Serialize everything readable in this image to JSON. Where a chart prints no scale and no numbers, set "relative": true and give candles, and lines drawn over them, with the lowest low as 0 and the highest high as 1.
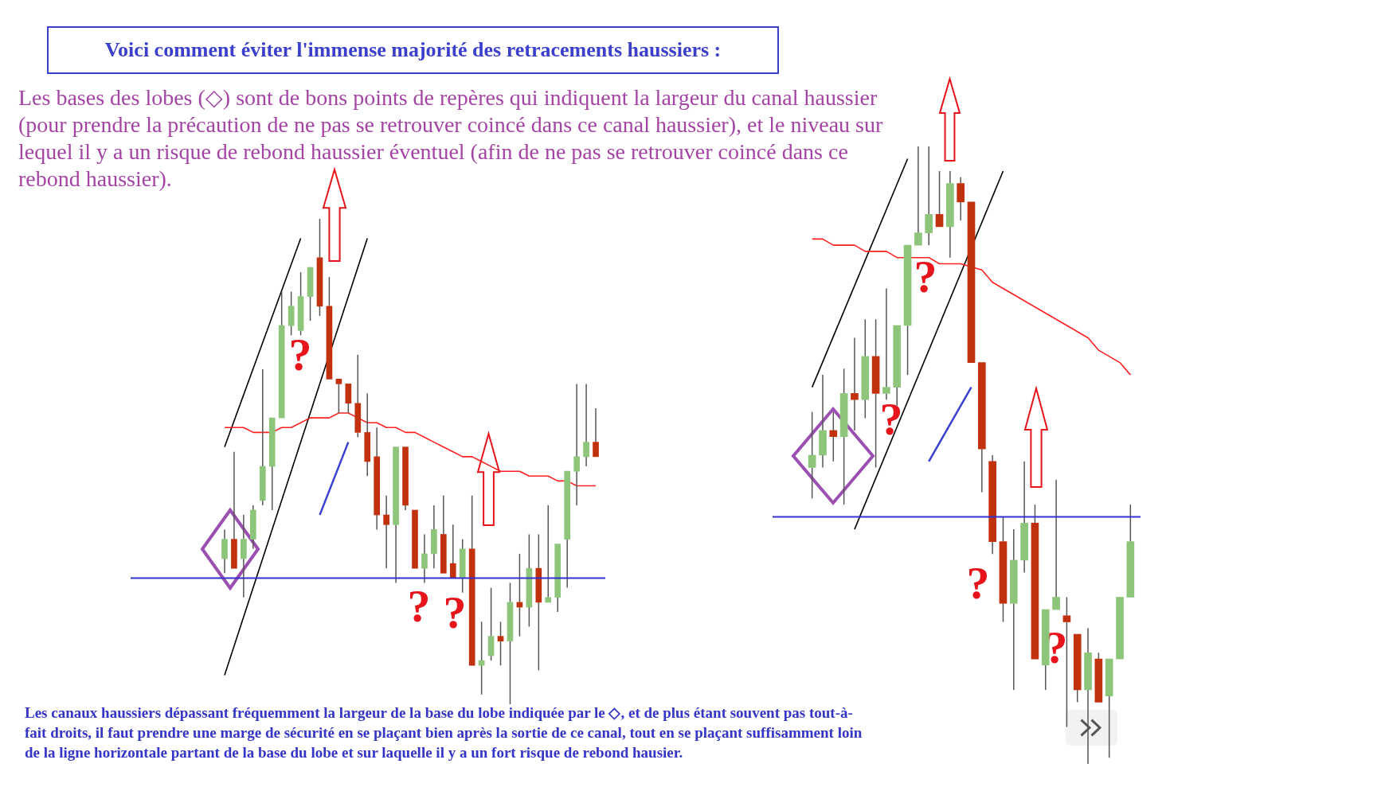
{
  "chart_data": [
    {
      "type": "candlestick",
      "relative": true,
      "title": "Voici comment éviter l'immense majorité des retracements haussiers :",
      "subtitle": "Les bases des lobes (◇) sont de bons points de repères qui indiquent la largeur du canal haussier (pour prendre la précaution de ne pas se retrouver coincé dans ce canal haussier), et le niveau sur lequel il y a un risque de rebond haussier éventuel (afin de ne pas se retrouver coincé dans ce rebond haussier).",
      "annotations": [
        "Les canaux haussiers dépassant fréquemment la largeur de la base du lobe indiquée par le ◇, et de plus étant souvent pas tout-à-fait droits, il faut prendre une marge de sécurité en se plaçant bien après  la sortie de ce canal, tout en se plaçant suffisamment loin de la ligne horizontale partant de la base du lobe et sur laquelle il y a un fort risque de rebond hausier.",
        "?",
        "?",
        "?"
      ],
      "categories": [
        null,
        null,
        null,
        null,
        null,
        null,
        null,
        null,
        null,
        null,
        null,
        null,
        null,
        null,
        null,
        null,
        null,
        null,
        null,
        null,
        null,
        null,
        null,
        null,
        null,
        null,
        null,
        null,
        null,
        null,
        null,
        null,
        null,
        null,
        null,
        null,
        null,
        null,
        null,
        null
      ],
      "ohlc": [
        [
          0.3,
          0.36,
          0.27,
          0.34
        ],
        [
          0.34,
          0.52,
          0.28,
          0.28
        ],
        [
          0.3,
          0.39,
          0.22,
          0.34
        ],
        [
          0.34,
          0.41,
          0.32,
          0.4
        ],
        [
          0.42,
          0.69,
          0.41,
          0.49
        ],
        [
          0.49,
          0.59,
          0.4,
          0.59
        ],
        [
          0.59,
          0.85,
          0.59,
          0.78
        ],
        [
          0.78,
          0.85,
          0.76,
          0.82
        ],
        [
          0.77,
          0.89,
          0.76,
          0.84
        ],
        [
          0.84,
          0.9,
          0.79,
          0.9
        ],
        [
          0.92,
          1,
          0.8,
          0.82
        ],
        [
          0.82,
          0.88,
          0.67,
          0.67
        ],
        [
          0.67,
          0.67,
          0.6,
          0.66
        ],
        [
          0.66,
          0.66,
          0.6,
          0.62
        ],
        [
          0.62,
          0.72,
          0.55,
          0.56
        ],
        [
          0.56,
          0.64,
          0.47,
          0.5
        ],
        [
          0.51,
          0.57,
          0.36,
          0.39
        ],
        [
          0.39,
          0.43,
          0.28,
          0.37
        ],
        [
          0.37,
          0.53,
          0.25,
          0.53
        ],
        [
          0.53,
          0.53,
          0.4,
          0.41
        ],
        [
          0.4,
          0.4,
          0.28,
          0.28
        ],
        [
          0.28,
          0.35,
          0.25,
          0.31
        ],
        [
          0.31,
          0.41,
          0.28,
          0.36
        ],
        [
          0.35,
          0.43,
          0.27,
          0.27
        ],
        [
          0.29,
          0.37,
          0.26,
          0.26
        ],
        [
          0.26,
          0.34,
          0.23,
          0.32
        ],
        [
          0.32,
          0.43,
          0.08,
          0.08
        ],
        [
          0.08,
          0.17,
          0.02,
          0.09
        ],
        [
          0.1,
          0.24,
          0.09,
          0.14
        ],
        [
          0.14,
          0.17,
          0.08,
          0.13
        ],
        [
          0.13,
          0.25,
          0,
          0.21
        ],
        [
          0.21,
          0.31,
          0.14,
          0.2
        ],
        [
          0.2,
          0.35,
          0.16,
          0.28
        ],
        [
          0.28,
          0.35,
          0.07,
          0.21
        ],
        [
          0.21,
          0.41,
          0.21,
          0.22
        ],
        [
          0.22,
          0.33,
          0.19,
          0.33
        ],
        [
          0.34,
          0.48,
          0.24,
          0.48
        ],
        [
          0.48,
          0.66,
          0.41,
          0.51
        ],
        [
          0.51,
          0.66,
          0.49,
          0.54
        ],
        [
          0.54,
          0.61,
          0.51,
          0.51
        ]
      ],
      "colors": [
        "#8dc57b",
        "#c2310d",
        "#8dc57b",
        "#8dc57b",
        "#8dc57b",
        "#8dc57b",
        "#8dc57b",
        "#8dc57b",
        "#8dc57b",
        "#8dc57b",
        "#c2310d",
        "#c2310d",
        "#c2310d",
        "#c2310d",
        "#c2310d",
        "#c2310d",
        "#c2310d",
        "#c2310d",
        "#8dc57b",
        "#c2310d",
        "#c2310d",
        "#8dc57b",
        "#8dc57b",
        "#c2310d",
        "#c2310d",
        "#8dc57b",
        "#c2310d",
        "#8dc57b",
        "#8dc57b",
        "#c2310d",
        "#8dc57b",
        "#c2310d",
        "#8dc57b",
        "#c2310d",
        "#8dc57b",
        "#8dc57b",
        "#8dc57b",
        "#8dc57b",
        "#8dc57b",
        "#c2310d"
      ],
      "series": [
        {
          "type": "line",
          "color": "#ff2020",
          "values": [
            0.57,
            0.57,
            0.57,
            0.56,
            0.56,
            0.56,
            0.57,
            0.57,
            0.58,
            0.59,
            0.59,
            0.59,
            0.6,
            0.6,
            0.59,
            0.58,
            0.58,
            0.57,
            0.57,
            0.56,
            0.56,
            0.55,
            0.54,
            0.53,
            0.52,
            0.51,
            0.51,
            0.5,
            0.49,
            0.48,
            0.48,
            0.48,
            0.47,
            0.47,
            0.47,
            0.46,
            0.46,
            0.45,
            0.45,
            0.45
          ]
        },
        {
          "type": "line",
          "color": "#000000",
          "values": [
            0.53,
            null,
            null,
            null,
            null,
            null,
            null,
            null,
            0.96,
            null,
            null,
            null,
            null,
            null,
            null,
            null,
            null,
            null,
            null,
            null,
            null,
            null,
            null,
            null,
            null,
            null,
            null,
            null,
            null,
            null,
            null,
            null,
            null,
            null,
            null,
            null,
            null,
            null,
            null,
            null
          ]
        },
        {
          "type": "line",
          "color": "#000000",
          "values": [
            0.06,
            null,
            null,
            null,
            null,
            null,
            null,
            null,
            null,
            null,
            null,
            null,
            null,
            null,
            null,
            0.96,
            null,
            null,
            null,
            null,
            null,
            null,
            null,
            null,
            null,
            null,
            null,
            null,
            null,
            null,
            null,
            null,
            null,
            null,
            null,
            null,
            null,
            null,
            null,
            null
          ]
        },
        {
          "type": "line",
          "color": "#3a40d0",
          "values": [
            null,
            null,
            null,
            null,
            null,
            null,
            null,
            null,
            null,
            null,
            0.39,
            null,
            null,
            0.54,
            null,
            null,
            null,
            null,
            null,
            null,
            null,
            null,
            null,
            null,
            null,
            null,
            null,
            null,
            null,
            null,
            null,
            null,
            null,
            null,
            null,
            null,
            null,
            null,
            null,
            null
          ]
        }
      ],
      "ref_lines": [
        {
          "axis": "y",
          "value": 0.26,
          "color": "#3333cc"
        }
      ]
    },
    {
      "type": "candlestick",
      "relative": true,
      "annotations": [
        "?",
        "?",
        "?",
        "?"
      ],
      "categories": [
        null,
        null,
        null,
        null,
        null,
        null,
        null,
        null,
        null,
        null,
        null,
        null,
        null,
        null,
        null,
        null,
        null,
        null,
        null,
        null,
        null,
        null,
        null,
        null,
        null,
        null,
        null,
        null,
        null,
        null,
        null
      ],
      "ohlc": [
        [
          0.48,
          0.57,
          0.43,
          0.5
        ],
        [
          0.5,
          0.63,
          0.48,
          0.54
        ],
        [
          0.54,
          0.57,
          0.49,
          0.53
        ],
        [
          0.53,
          0.64,
          0.42,
          0.6
        ],
        [
          0.6,
          0.69,
          0.54,
          0.59
        ],
        [
          0.59,
          0.72,
          0.56,
          0.66
        ],
        [
          0.66,
          0.72,
          0.48,
          0.6
        ],
        [
          0.6,
          0.77,
          0.59,
          0.61
        ],
        [
          0.61,
          0.71,
          0.58,
          0.71
        ],
        [
          0.71,
          0.84,
          0.63,
          0.84
        ],
        [
          0.84,
          1,
          0.84,
          0.86
        ],
        [
          0.86,
          1,
          0.84,
          0.89
        ],
        [
          0.89,
          0.96,
          0.87,
          0.87
        ],
        [
          0.87,
          0.96,
          0.82,
          0.94
        ],
        [
          0.94,
          0.95,
          0.88,
          0.91
        ],
        [
          0.91,
          0.91,
          0.65,
          0.65
        ],
        [
          0.65,
          0.65,
          0.44,
          0.51
        ],
        [
          0.49,
          0.5,
          0.34,
          0.36
        ],
        [
          0.36,
          0.4,
          0.23,
          0.26
        ],
        [
          0.26,
          0.38,
          0.12,
          0.33
        ],
        [
          0.33,
          0.49,
          0.31,
          0.39
        ],
        [
          0.39,
          0.42,
          0.17,
          0.17
        ],
        [
          0.16,
          0.25,
          0.12,
          0.25
        ],
        [
          0.25,
          0.46,
          0.25,
          0.27
        ],
        [
          0.24,
          0.27,
          0.06,
          0.23
        ],
        [
          0.21,
          0.21,
          0.1,
          0.12
        ],
        [
          0.12,
          0.22,
          0,
          0.18
        ],
        [
          0.17,
          0.18,
          0.1,
          0.1
        ],
        [
          0.11,
          0.17,
          0.01,
          0.17
        ],
        [
          0.17,
          0.27,
          0.17,
          0.27
        ],
        [
          0.27,
          0.42,
          0.27,
          0.36
        ]
      ],
      "colors": [
        "#8dc57b",
        "#8dc57b",
        "#c2310d",
        "#8dc57b",
        "#c2310d",
        "#8dc57b",
        "#c2310d",
        "#8dc57b",
        "#8dc57b",
        "#8dc57b",
        "#8dc57b",
        "#8dc57b",
        "#c2310d",
        "#8dc57b",
        "#c2310d",
        "#c2310d",
        "#c2310d",
        "#c2310d",
        "#c2310d",
        "#8dc57b",
        "#8dc57b",
        "#c2310d",
        "#8dc57b",
        "#8dc57b",
        "#c2310d",
        "#c2310d",
        "#8dc57b",
        "#c2310d",
        "#8dc57b",
        "#8dc57b",
        "#8dc57b"
      ],
      "series": [
        {
          "type": "line",
          "color": "#ff2020",
          "values": [
            0.85,
            0.85,
            0.84,
            0.84,
            0.84,
            0.83,
            0.83,
            0.83,
            0.82,
            null,
            0.82,
            0.82,
            0.81,
            0.81,
            0.81,
            null,
            0.8,
            0.78,
            0.77,
            0.76,
            0.75,
            0.74,
            0.73,
            0.72,
            0.71,
            0.7,
            0.69,
            0.67,
            0.66,
            0.65,
            0.63
          ]
        },
        {
          "type": "line",
          "color": "#000000",
          "values": [
            0.61,
            null,
            null,
            null,
            null,
            null,
            null,
            null,
            null,
            0.98,
            null,
            null,
            null,
            null,
            null,
            null,
            null,
            null,
            null,
            null,
            null,
            null,
            null,
            null,
            null,
            null,
            null,
            null,
            null,
            null,
            null
          ]
        },
        {
          "type": "line",
          "color": "#000000",
          "values": [
            null,
            null,
            null,
            null,
            0.38,
            null,
            null,
            null,
            null,
            null,
            null,
            null,
            null,
            null,
            null,
            null,
            null,
            null,
            0.96,
            null,
            null,
            null,
            null,
            null,
            null,
            null,
            null,
            null,
            null,
            null,
            null
          ]
        },
        {
          "type": "line",
          "color": "#3a40d0",
          "values": [
            null,
            null,
            null,
            null,
            null,
            null,
            null,
            null,
            null,
            null,
            null,
            0.49,
            null,
            null,
            null,
            0.61,
            null,
            null,
            null,
            null,
            null,
            null,
            null,
            null,
            null,
            null,
            null,
            null,
            null,
            null,
            null
          ]
        }
      ],
      "ref_lines": [
        {
          "axis": "y",
          "value": 0.4,
          "color": "#3333cc"
        }
      ]
    }
  ]
}
